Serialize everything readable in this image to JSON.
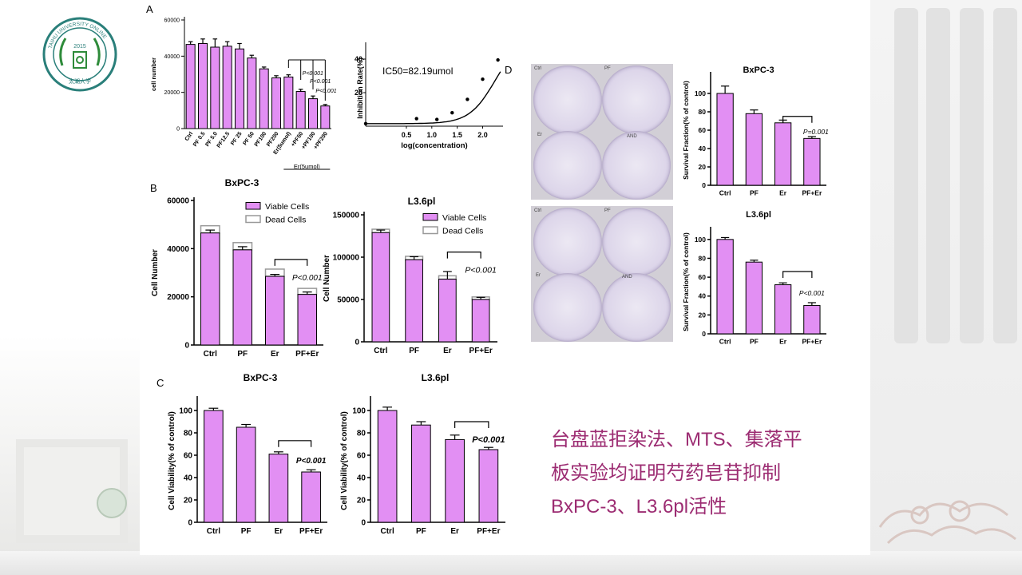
{
  "caption": {
    "line1": "台盘蓝拒染法、MTS、集落平",
    "line2": "板实验均证明芍药皂苷抑制",
    "line3": "BxPC-3、L3.6pl活性"
  },
  "logo": {
    "year": "2015",
    "ring_text": "TAIHU UNIVERSITY ONLINE",
    "motto": "太湖大学"
  },
  "panel_labels": {
    "a": "A",
    "b": "B",
    "c": "C",
    "d": "D"
  },
  "colors": {
    "bar": "#e28ff3",
    "bar_stroke": "#000000",
    "caption": "#9c2c72",
    "title_bar": "#1f4e9c",
    "dead": "#ffffff",
    "dead_stroke": "#999999"
  },
  "dish_labels": {
    "top": [
      "Ctrl",
      "PF",
      "Er",
      "AND"
    ],
    "bottom": [
      "Ctrl",
      "PF",
      "Er",
      "AND"
    ]
  },
  "chart_data": [
    {
      "id": "a1",
      "type": "bar",
      "ylabel": "cell number",
      "ylim": [
        0,
        60000
      ],
      "yticks": [
        "0",
        "20000",
        "40000",
        "60000"
      ],
      "categories": [
        "Ctrl",
        "PF 0.5",
        "PF 5.0",
        "PF12.5",
        "PF 25",
        "PF 50",
        "PF100",
        "PF200",
        "Er(5umol)",
        "+PF50",
        "+PF100",
        "+PF200"
      ],
      "values": [
        46500,
        47000,
        45000,
        45500,
        44000,
        39000,
        33000,
        28000,
        28500,
        20500,
        16500,
        12500
      ],
      "errors": [
        1500,
        2500,
        4500,
        2500,
        3000,
        1500,
        1000,
        1200,
        1200,
        1200,
        1500,
        800
      ],
      "group_label": "Er(5umol)",
      "annotations": [
        "P<0.001",
        "P<0.001",
        "P<0.001"
      ]
    },
    {
      "id": "a2",
      "type": "line",
      "xlabel": "log(concentration)",
      "ylabel": "Inhibition Rate(%)",
      "annotation": "IC50=82.19umol",
      "xticks": [
        "0.5",
        "1.0",
        "1.5",
        "2.0"
      ],
      "yticks": [
        "20",
        "40"
      ],
      "xlim": [
        -0.3,
        2.4
      ],
      "ylim": [
        0,
        50
      ],
      "x": [
        -0.3,
        0.7,
        1.1,
        1.4,
        1.7,
        2.0,
        2.3
      ],
      "y": [
        1.5,
        4.5,
        4.0,
        8.0,
        16.0,
        28.0,
        39.5
      ]
    },
    {
      "id": "b1",
      "type": "bar",
      "title": "BxPC-3",
      "ylabel": "Cell Number",
      "ylim": [
        0,
        60000
      ],
      "yticks": [
        "0",
        "20000",
        "40000",
        "60000"
      ],
      "categories": [
        "Ctrl",
        "PF",
        "Er",
        "PF+Er"
      ],
      "series": [
        {
          "name": "Viable Cells",
          "values": [
            46500,
            39500,
            28500,
            21000
          ],
          "errors": [
            1200,
            1300,
            800,
            1000
          ]
        },
        {
          "name": "Dead Cells",
          "values": [
            3000,
            3000,
            3000,
            2500
          ],
          "errors": [
            0,
            0,
            0,
            0
          ]
        }
      ],
      "annotation": "P<0.001"
    },
    {
      "id": "b2",
      "type": "bar",
      "title": "L3.6pl",
      "ylabel": "Cell Number",
      "ylim": [
        0,
        150000
      ],
      "yticks": [
        "0",
        "50000",
        "100000",
        "150000"
      ],
      "categories": [
        "Ctrl",
        "PF",
        "Er",
        "PF+Er"
      ],
      "series": [
        {
          "name": "Viable Cells",
          "values": [
            129000,
            97000,
            74000,
            50000
          ],
          "errors": [
            3000,
            3500,
            9000,
            2500
          ]
        },
        {
          "name": "Dead Cells",
          "values": [
            4000,
            4000,
            4000,
            3000
          ],
          "errors": [
            0,
            0,
            0,
            0
          ]
        }
      ],
      "annotation": "P<0.001"
    },
    {
      "id": "c1",
      "type": "bar",
      "title": "BxPC-3",
      "ylabel": "Cell Viability(% of control)",
      "ylim": [
        0,
        110
      ],
      "yticks": [
        "0",
        "20",
        "40",
        "60",
        "80",
        "100"
      ],
      "categories": [
        "Ctrl",
        "PF",
        "Er",
        "PF+Er"
      ],
      "values": [
        100,
        85,
        61,
        45
      ],
      "errors": [
        2,
        2.5,
        2,
        2
      ],
      "annotation": "P<0.001"
    },
    {
      "id": "c2",
      "type": "bar",
      "title": "L3.6pl",
      "ylabel": "Cell Viability(% of control)",
      "ylim": [
        0,
        110
      ],
      "yticks": [
        "0",
        "20",
        "40",
        "60",
        "80",
        "100"
      ],
      "categories": [
        "Ctrl",
        "PF",
        "Er",
        "PF+Er"
      ],
      "values": [
        100,
        87,
        74,
        65
      ],
      "errors": [
        3,
        3,
        4,
        2
      ],
      "annotation": "P<0.001"
    },
    {
      "id": "d1",
      "type": "bar",
      "title": "BxPC-3",
      "ylabel": "Survival Fraction(% of control)",
      "ylim": [
        0,
        120
      ],
      "yticks": [
        "0",
        "20",
        "40",
        "60",
        "80",
        "100"
      ],
      "categories": [
        "Ctrl",
        "PF",
        "Er",
        "PF+Er"
      ],
      "values": [
        100,
        78,
        68,
        51
      ],
      "errors": [
        8,
        4,
        3,
        2
      ],
      "annotation": "P=0.001"
    },
    {
      "id": "d2",
      "type": "bar",
      "title": "L3.6pl",
      "ylabel": "Survival Fraction(% of control)",
      "ylim": [
        0,
        110
      ],
      "yticks": [
        "0",
        "20",
        "40",
        "60",
        "80",
        "100"
      ],
      "categories": [
        "Ctrl",
        "PF",
        "Er",
        "PF+Er"
      ],
      "values": [
        100,
        76,
        52,
        30
      ],
      "errors": [
        2,
        2,
        2,
        3
      ],
      "annotation": "P<0.001"
    }
  ]
}
